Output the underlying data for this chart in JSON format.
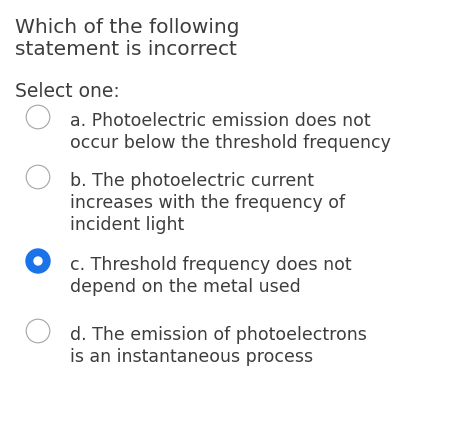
{
  "title_line1": "Which of the following",
  "title_line2": "statement is incorrect",
  "select_label": "Select one:",
  "options": [
    {
      "lines": [
        "a. Photoelectric emission does not",
        "occur below the threshold frequency"
      ],
      "selected": false
    },
    {
      "lines": [
        "b. The photoelectric current",
        "increases with the frequency of",
        "incident light"
      ],
      "selected": false
    },
    {
      "lines": [
        "c. Threshold frequency does not",
        "depend on the metal used"
      ],
      "selected": true
    },
    {
      "lines": [
        "d. The emission of photoelectrons",
        "is an instantaneous process"
      ],
      "selected": false
    }
  ],
  "bg_color": "#ffffff",
  "text_color": "#3d3d3d",
  "title_fontsize": 14.5,
  "select_fontsize": 13.5,
  "option_fontsize": 12.5,
  "selected_color": "#1a73e8",
  "unselected_border": "#aaaaaa"
}
